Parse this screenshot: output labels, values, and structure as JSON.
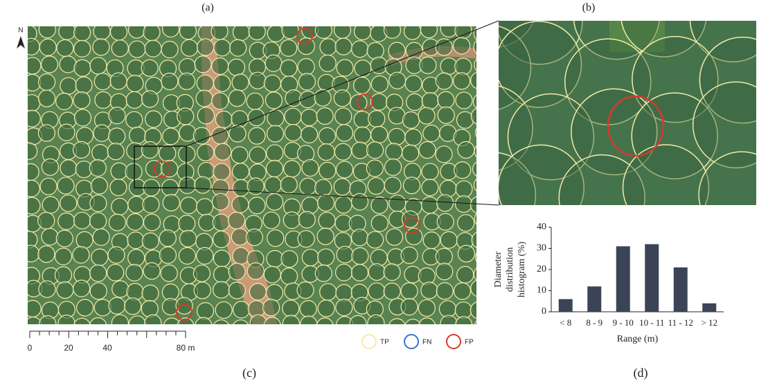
{
  "panels": {
    "a": "(a)",
    "b": "(b)",
    "c": "(c)",
    "d": "(d)"
  },
  "north": "N",
  "scale_bar": [
    "0",
    "20",
    "40",
    "80 m"
  ],
  "legend": [
    {
      "name": "TP",
      "color": "#f3eba8"
    },
    {
      "name": "FN",
      "color": "#3a6fd0"
    },
    {
      "name": "FP",
      "color": "#d8392b"
    }
  ],
  "chart_data": {
    "type": "bar",
    "y_label": [
      "Diameter",
      "distribution",
      "histogram (%)"
    ],
    "x_label": "Range (m)",
    "categories": [
      "< 8",
      "8 - 9",
      "9 - 10",
      "10 - 11",
      "11 - 12",
      "> 12"
    ],
    "values": [
      6,
      12,
      31,
      32,
      21,
      4
    ],
    "color": "#3b4457",
    "ylim": [
      0,
      40
    ],
    "yticks": [
      0,
      10,
      20,
      30,
      40
    ]
  }
}
